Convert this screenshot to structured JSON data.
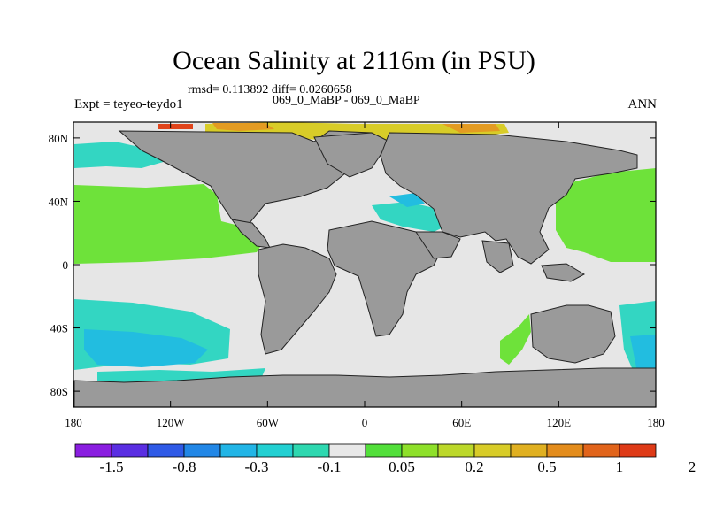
{
  "title": "Ocean Salinity at 2116m (in PSU)",
  "stats_line": "rmsd= 0.113892 diff= 0.0260658",
  "comparison_line": "069_0_MaBP - 069_0_MaBP",
  "experiment_label": "Expt = teyeo-teydo1",
  "season_label": "ANN",
  "map": {
    "projection": "cylindrical-equidistant",
    "lon_range": [
      -180,
      180
    ],
    "lat_range": [
      -90,
      90
    ],
    "lat_ticks": [
      {
        "lat": 80,
        "label": "80N"
      },
      {
        "lat": 40,
        "label": "40N"
      },
      {
        "lat": 0,
        "label": "0"
      },
      {
        "lat": -40,
        "label": "40S"
      },
      {
        "lat": -80,
        "label": "80S"
      }
    ],
    "lon_ticks": [
      {
        "lon": -180,
        "label": "180"
      },
      {
        "lon": -120,
        "label": "120W"
      },
      {
        "lon": -60,
        "label": "60W"
      },
      {
        "lon": 0,
        "label": "0"
      },
      {
        "lon": 60,
        "label": "60E"
      },
      {
        "lon": 120,
        "label": "120E"
      },
      {
        "lon": 180,
        "label": "180"
      }
    ]
  },
  "colors": {
    "land": "#9a9a9a",
    "near_zero": "#e6e6e6",
    "positive_small": "#6ee23a",
    "negative_small": "#33d6c2",
    "negative_mid": "#22bde0",
    "positive_large": "#e39b22",
    "positive_max": "#e0441b"
  },
  "colorbar": {
    "colors": [
      "#8a1ee0",
      "#5a2ee2",
      "#2f5ae6",
      "#2287e6",
      "#22b5e6",
      "#23d0d2",
      "#2ed8b0",
      "#e8e8e8",
      "#52df3a",
      "#8ee02a",
      "#bcd82a",
      "#d8cc28",
      "#e0b021",
      "#e38c1c",
      "#e1641b",
      "#de3a17"
    ],
    "labels": [
      {
        "boundary": 1,
        "text": "-1.5"
      },
      {
        "boundary": 3,
        "text": "-0.8"
      },
      {
        "boundary": 5,
        "text": "-0.3"
      },
      {
        "boundary": 7,
        "text": "-0.1"
      },
      {
        "boundary": 9,
        "text": "0.05"
      },
      {
        "boundary": 11,
        "text": "0.2"
      },
      {
        "boundary": 13,
        "text": "0.5"
      },
      {
        "boundary": 15,
        "text": "1"
      },
      {
        "boundary": 17,
        "text": "2"
      }
    ]
  }
}
